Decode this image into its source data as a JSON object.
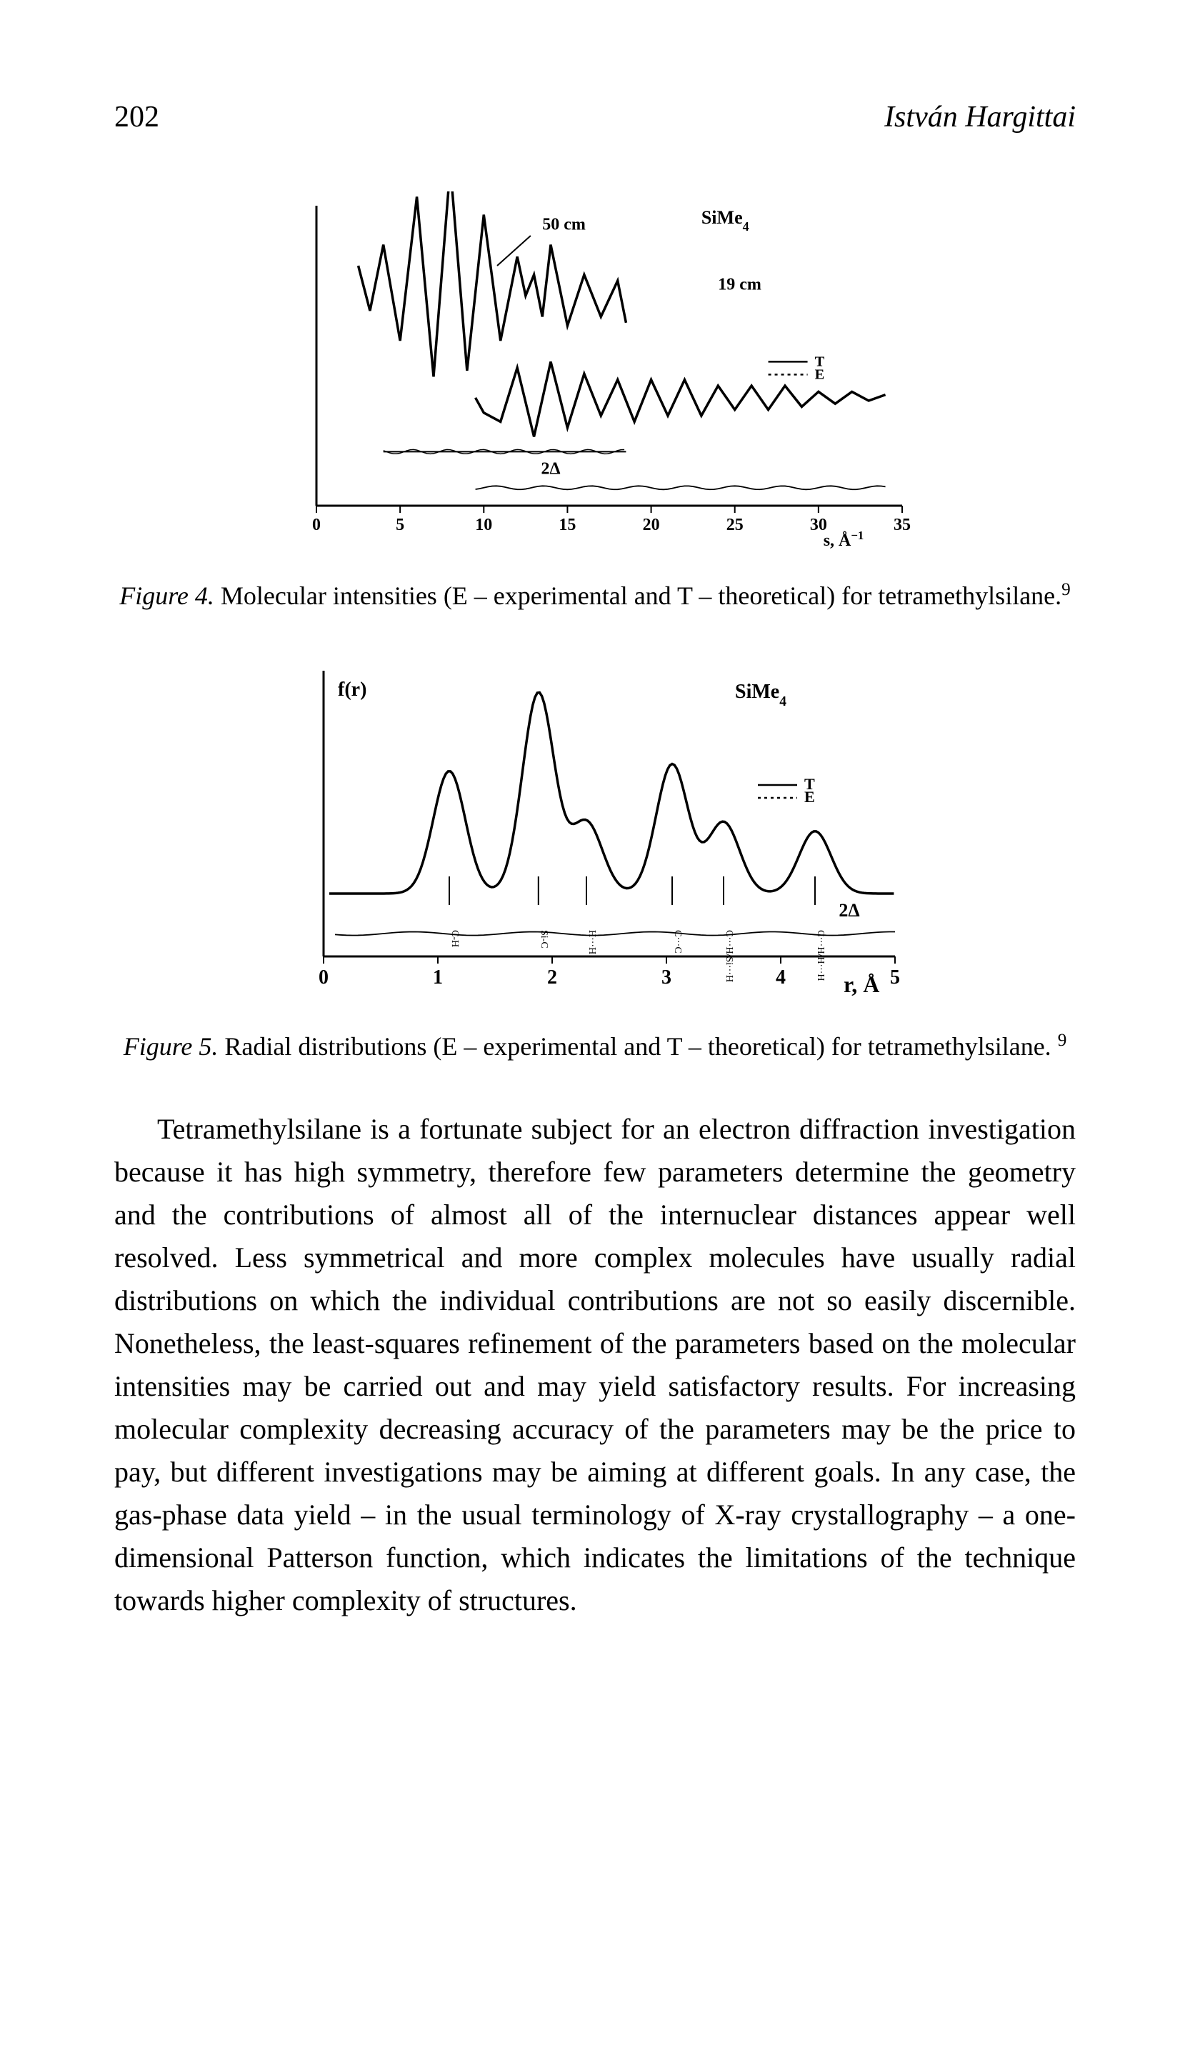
{
  "header": {
    "page_number": "202",
    "author": "István Hargittai"
  },
  "figure4": {
    "type": "line",
    "compound": "SiMe",
    "compound_sub": "4",
    "annotations": {
      "dist_50": "50 cm",
      "dist_19": "19 cm",
      "delta": "2Δ",
      "legend_T": "T",
      "legend_E": "E"
    },
    "xaxis": {
      "label": "s,  Å",
      "label_sup": "−1",
      "ticks": [
        "0",
        "5",
        "10",
        "15",
        "20",
        "25",
        "30",
        "35"
      ],
      "tick_positions": [
        0,
        5,
        10,
        15,
        20,
        25,
        30,
        35
      ],
      "xmin": 0,
      "xmax": 35
    },
    "colors": {
      "stroke": "#000000",
      "background": "#ffffff"
    },
    "curve_top": {
      "comment": "50cm curve, estimated oscillation",
      "points": [
        [
          2.5,
          55
        ],
        [
          3.2,
          40
        ],
        [
          4,
          62
        ],
        [
          5,
          30
        ],
        [
          6,
          78
        ],
        [
          7,
          18
        ],
        [
          8,
          88
        ],
        [
          9,
          20
        ],
        [
          10,
          72
        ],
        [
          11,
          30
        ],
        [
          12,
          58
        ],
        [
          12.5,
          45
        ],
        [
          13,
          52
        ],
        [
          13.5,
          38
        ],
        [
          14,
          62
        ],
        [
          15,
          35
        ],
        [
          16,
          52
        ],
        [
          17,
          38
        ],
        [
          18,
          50
        ],
        [
          18.5,
          36
        ]
      ]
    },
    "curve_bottom": {
      "comment": "19cm curve",
      "points": [
        [
          9.5,
          48
        ],
        [
          10,
          43
        ],
        [
          11,
          40
        ],
        [
          12,
          58
        ],
        [
          13,
          35
        ],
        [
          14,
          60
        ],
        [
          15,
          38
        ],
        [
          16,
          56
        ],
        [
          17,
          42
        ],
        [
          18,
          54
        ],
        [
          19,
          40
        ],
        [
          20,
          54
        ],
        [
          21,
          42
        ],
        [
          22,
          54
        ],
        [
          23,
          42
        ],
        [
          24,
          52
        ],
        [
          25,
          44
        ],
        [
          26,
          52
        ],
        [
          27,
          44
        ],
        [
          28,
          52
        ],
        [
          29,
          45
        ],
        [
          30,
          50
        ],
        [
          31,
          46
        ],
        [
          32,
          50
        ],
        [
          33,
          47
        ],
        [
          34,
          49
        ]
      ]
    },
    "diff_top": {
      "y": 12,
      "x_range": [
        4,
        18.5
      ]
    },
    "diff_bottom": {
      "y": 6,
      "x_range": [
        9.5,
        34
      ]
    },
    "line_width": 2.5,
    "fontsize_labels": 24,
    "fontsize_ticks": 24
  },
  "figure4_caption": {
    "label": "Figure 4.",
    "text": " Molecular intensities (E – experimental and T – theoretical) for tetramethylsilane.",
    "sup": "9"
  },
  "figure5": {
    "type": "line",
    "ylabel": "f(r)",
    "compound": "SiMe",
    "compound_sub": "4",
    "annotations": {
      "delta": "2Δ",
      "legend_T": "T",
      "legend_E": "E"
    },
    "xaxis": {
      "label": "r,  Å",
      "ticks": [
        "0",
        "1",
        "2",
        "3",
        "4",
        "5"
      ],
      "tick_positions": [
        0,
        1,
        2,
        3,
        4,
        5
      ],
      "xmin": 0,
      "xmax": 5
    },
    "colors": {
      "stroke": "#000000",
      "background": "#ffffff"
    },
    "peaks": [
      {
        "label": "C-H",
        "x": 1.1,
        "height": 55
      },
      {
        "label": "Si-C",
        "x": 1.88,
        "height": 90
      },
      {
        "label": "H···H",
        "x": 2.3,
        "height": 32
      },
      {
        "label": "C···C",
        "x": 3.05,
        "height": 58
      },
      {
        "label": "C···H/Si···H",
        "x": 3.5,
        "height": 32
      },
      {
        "label": "C···H/H···H",
        "x": 4.3,
        "height": 28
      }
    ],
    "diff": {
      "y": 8,
      "x_range": [
        0.1,
        5.0
      ]
    },
    "line_width": 2.5,
    "fontsize_labels": 26,
    "fontsize_ticks": 28
  },
  "figure5_caption": {
    "label": "Figure 5.",
    "text": " Radial distributions (E – experimental and T – theoretical) for tetramethylsilane. ",
    "sup": "9"
  },
  "body": {
    "paragraph": "Tetramethylsilane is a fortunate subject for an electron diffraction investigation because it has high symmetry, therefore few parameters determine the geometry and the contributions of almost all of the internuclear distances appear well resolved. Less symmetrical and more complex molecules have usually radial distributions on which the individual contributions are not so easily discernible. Nonetheless, the least-squares refinement of the parameters based on the molecular intensities may be carried out and may yield satisfactory results. For increasing molecular complexity decreasing accuracy of the parameters may be the price to pay, but different investigations may be aiming at different goals. In any case, the gas-phase data yield – in the usual terminology of X-ray crystallography – a one-dimensional Patterson function, which indicates the limitations of the technique towards higher complexity of structures."
  }
}
